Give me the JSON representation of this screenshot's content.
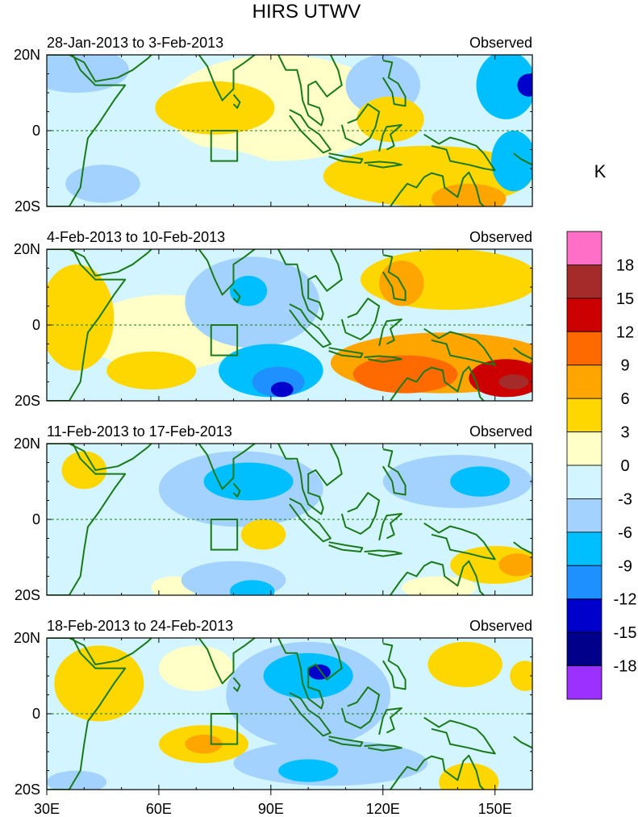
{
  "chart_data": {
    "type": "heatmap",
    "title": "HIRS UTWV",
    "colorbar_unit": "K",
    "colorbar_levels": [
      "18",
      "15",
      "12",
      "9",
      "6",
      "3",
      "0",
      "-3",
      "-6",
      "-9",
      "-12",
      "-15",
      "-18"
    ],
    "colorbar_colors": [
      "#ff6ec7",
      "#a52a2a",
      "#cd0000",
      "#ff6a00",
      "#ffa500",
      "#ffd700",
      "#ffffc8",
      "#d2f5ff",
      "#a4d2ff",
      "#00bfff",
      "#1e90ff",
      "#0000cd",
      "#00008b",
      "#9b30ff"
    ],
    "lon_range": [
      30,
      160
    ],
    "lat_range": [
      -20,
      20
    ],
    "x_ticks": [
      {
        "value": 30,
        "label": "30E"
      },
      {
        "value": 60,
        "label": "60E"
      },
      {
        "value": 90,
        "label": "90E"
      },
      {
        "value": 120,
        "label": "120E"
      },
      {
        "value": 150,
        "label": "150E"
      }
    ],
    "y_ticks": [
      {
        "value": 20,
        "label": "20N"
      },
      {
        "value": 0,
        "label": "0"
      },
      {
        "value": -20,
        "label": "20S"
      }
    ],
    "box_region": {
      "lon": [
        74,
        81
      ],
      "lat": [
        -8,
        0
      ]
    },
    "panels": [
      {
        "period": "28-Jan-2013 to 3-Feb-2013",
        "label": "Observed",
        "blobs": [
          {
            "lon": 92,
            "lat": 6,
            "rx": 30,
            "ry": 14,
            "v": 1
          },
          {
            "lon": 65,
            "lat": -12,
            "rx": 28,
            "ry": 8,
            "v": -2
          },
          {
            "lon": 45,
            "lat": -14,
            "rx": 10,
            "ry": 5,
            "v": -4
          },
          {
            "lon": 38,
            "lat": 16,
            "rx": 14,
            "ry": 6,
            "v": -3
          },
          {
            "lon": 75,
            "lat": 6,
            "rx": 16,
            "ry": 7,
            "v": 4
          },
          {
            "lon": 78,
            "lat": 4,
            "rx": 7,
            "ry": 3.5,
            "v": 6
          },
          {
            "lon": 132,
            "lat": -12,
            "rx": 28,
            "ry": 8,
            "v": 5
          },
          {
            "lon": 143,
            "lat": -18,
            "rx": 10,
            "ry": 4,
            "v": 8
          },
          {
            "lon": 122,
            "lat": 3,
            "rx": 9,
            "ry": 6,
            "v": 4
          },
          {
            "lon": 120,
            "lat": 12,
            "rx": 10,
            "ry": 8,
            "v": -3
          },
          {
            "lon": 153,
            "lat": 12,
            "rx": 8,
            "ry": 9,
            "v": -8
          },
          {
            "lon": 159,
            "lat": 12,
            "rx": 3,
            "ry": 3,
            "v": -13
          },
          {
            "lon": 155,
            "lat": -8,
            "rx": 6,
            "ry": 8,
            "v": -6
          }
        ]
      },
      {
        "period": "4-Feb-2013 to 10-Feb-2013",
        "label": "Observed",
        "blobs": [
          {
            "lon": 62,
            "lat": -2,
            "rx": 22,
            "ry": 10,
            "v": 1
          },
          {
            "lon": 85,
            "lat": 6,
            "rx": 18,
            "ry": 12,
            "v": -3
          },
          {
            "lon": 90,
            "lat": -12,
            "rx": 14,
            "ry": 7,
            "v": -6
          },
          {
            "lon": 92,
            "lat": -15,
            "rx": 7,
            "ry": 4,
            "v": -9
          },
          {
            "lon": 93,
            "lat": -17,
            "rx": 3,
            "ry": 2,
            "v": -13
          },
          {
            "lon": 84,
            "lat": 9,
            "rx": 5,
            "ry": 4,
            "v": -7
          },
          {
            "lon": 38,
            "lat": 2,
            "rx": 10,
            "ry": 14,
            "v": 4
          },
          {
            "lon": 58,
            "lat": -12,
            "rx": 12,
            "ry": 5,
            "v": 5
          },
          {
            "lon": 138,
            "lat": 12,
            "rx": 24,
            "ry": 8,
            "v": 5
          },
          {
            "lon": 125,
            "lat": 11,
            "rx": 6,
            "ry": 6,
            "v": 7
          },
          {
            "lon": 136,
            "lat": -10,
            "rx": 30,
            "ry": 8,
            "v": 7
          },
          {
            "lon": 126,
            "lat": -13,
            "rx": 14,
            "ry": 5,
            "v": 12
          },
          {
            "lon": 153,
            "lat": -14,
            "rx": 10,
            "ry": 5,
            "v": 14
          },
          {
            "lon": 155,
            "lat": -15,
            "rx": 4,
            "ry": 2,
            "v": 17
          }
        ]
      },
      {
        "period": "11-Feb-2013 to 17-Feb-2013",
        "label": "Observed",
        "blobs": [
          {
            "lon": 82,
            "lat": 8,
            "rx": 22,
            "ry": 10,
            "v": -3
          },
          {
            "lon": 84,
            "lat": 10,
            "rx": 12,
            "ry": 5,
            "v": -6
          },
          {
            "lon": 80,
            "lat": -16,
            "rx": 14,
            "ry": 5,
            "v": -4
          },
          {
            "lon": 85,
            "lat": -19,
            "rx": 6,
            "ry": 3,
            "v": -7
          },
          {
            "lon": 45,
            "lat": -10,
            "rx": 14,
            "ry": 7,
            "v": -2
          },
          {
            "lon": 140,
            "lat": 10,
            "rx": 20,
            "ry": 7,
            "v": -3
          },
          {
            "lon": 146,
            "lat": 10,
            "rx": 8,
            "ry": 4,
            "v": -7
          },
          {
            "lon": 40,
            "lat": 13,
            "rx": 6,
            "ry": 5,
            "v": 4
          },
          {
            "lon": 88,
            "lat": -4,
            "rx": 6,
            "ry": 4,
            "v": 4
          },
          {
            "lon": 150,
            "lat": -12,
            "rx": 12,
            "ry": 5,
            "v": 4
          },
          {
            "lon": 156,
            "lat": -12,
            "rx": 5,
            "ry": 3,
            "v": 7
          },
          {
            "lon": 135,
            "lat": -18,
            "rx": 10,
            "ry": 3,
            "v": 2
          },
          {
            "lon": 64,
            "lat": -18,
            "rx": 6,
            "ry": 3,
            "v": 3
          }
        ]
      },
      {
        "period": "18-Feb-2013 to 24-Feb-2013",
        "label": "Observed",
        "blobs": [
          {
            "lon": 100,
            "lat": 5,
            "rx": 22,
            "ry": 14,
            "v": -3
          },
          {
            "lon": 100,
            "lat": 10,
            "rx": 12,
            "ry": 6,
            "v": -7
          },
          {
            "lon": 103,
            "lat": 11,
            "rx": 3,
            "ry": 2,
            "v": -14
          },
          {
            "lon": 106,
            "lat": -13,
            "rx": 26,
            "ry": 6,
            "v": -5
          },
          {
            "lon": 100,
            "lat": -15,
            "rx": 8,
            "ry": 3,
            "v": -8
          },
          {
            "lon": 44,
            "lat": 8,
            "rx": 12,
            "ry": 10,
            "v": 4
          },
          {
            "lon": 44,
            "lat": 6,
            "rx": 5,
            "ry": 5,
            "v": 6
          },
          {
            "lon": 72,
            "lat": -8,
            "rx": 12,
            "ry": 5,
            "v": 5
          },
          {
            "lon": 72,
            "lat": -8,
            "rx": 5,
            "ry": 2.5,
            "v": 7
          },
          {
            "lon": 70,
            "lat": 12,
            "rx": 10,
            "ry": 6,
            "v": 2
          },
          {
            "lon": 142,
            "lat": 13,
            "rx": 10,
            "ry": 6,
            "v": 4
          },
          {
            "lon": 143,
            "lat": -18,
            "rx": 8,
            "ry": 5,
            "v": 6
          },
          {
            "lon": 38,
            "lat": -18,
            "rx": 8,
            "ry": 3,
            "v": -4
          },
          {
            "lon": 158,
            "lat": 10,
            "rx": 4,
            "ry": 4,
            "v": 4
          }
        ]
      }
    ]
  }
}
